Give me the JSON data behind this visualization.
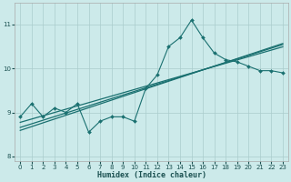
{
  "xlabel": "Humidex (Indice chaleur)",
  "bg_color": "#cceaea",
  "grid_color": "#aacccc",
  "line_color": "#1a7070",
  "x_data": [
    0,
    1,
    2,
    3,
    4,
    5,
    6,
    7,
    8,
    9,
    10,
    11,
    12,
    13,
    14,
    15,
    16,
    17,
    18,
    19,
    20,
    21,
    22,
    23
  ],
  "y_main": [
    8.9,
    9.2,
    8.9,
    9.1,
    9.0,
    9.2,
    8.55,
    8.8,
    8.9,
    8.9,
    8.8,
    9.55,
    9.85,
    10.5,
    10.7,
    11.1,
    10.7,
    10.35,
    10.2,
    10.15,
    10.05,
    9.95,
    9.95,
    9.9
  ],
  "ylim": [
    7.9,
    11.5
  ],
  "xlim": [
    -0.5,
    23.5
  ],
  "yticks": [
    8,
    9,
    10,
    11
  ],
  "xticks": [
    0,
    1,
    2,
    3,
    4,
    5,
    6,
    7,
    8,
    9,
    10,
    11,
    12,
    13,
    14,
    15,
    16,
    17,
    18,
    19,
    20,
    21,
    22,
    23
  ],
  "tick_labelsize": 5,
  "xlabel_fontsize": 6,
  "xlabel_color": "#1a5050"
}
